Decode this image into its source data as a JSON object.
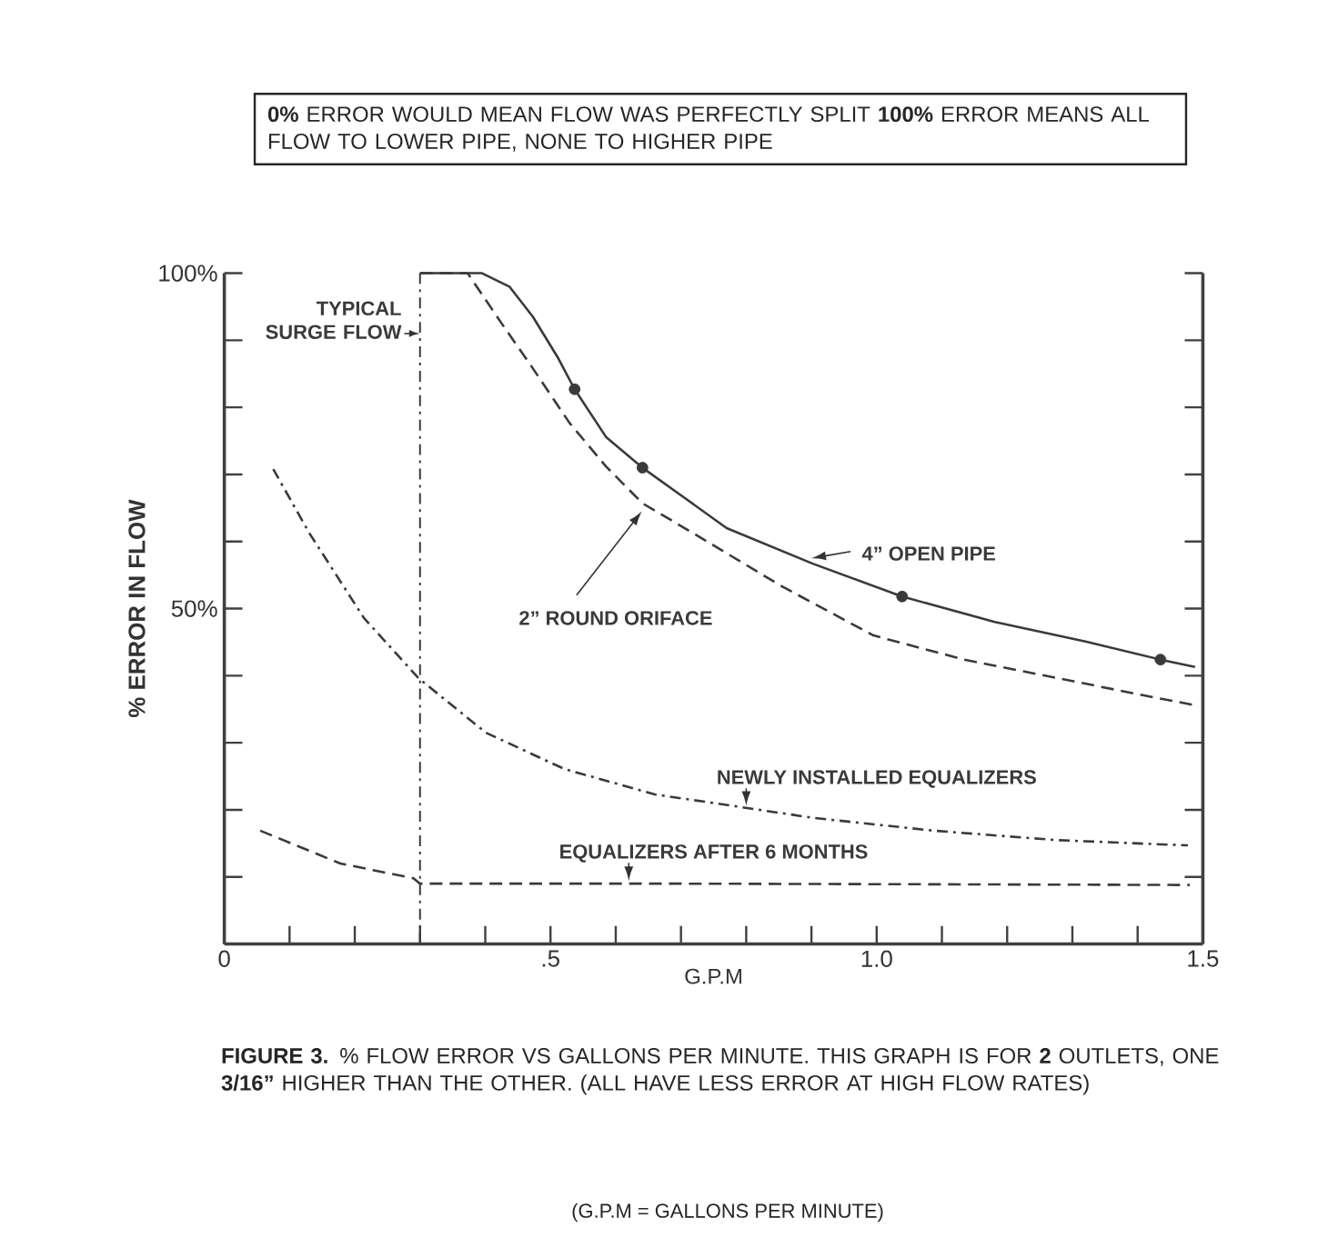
{
  "chart_data": {
    "type": "line",
    "xlabel": "G.P.M",
    "ylabel": "% ERROR IN FLOW",
    "xlim": [
      0,
      1.5
    ],
    "ylim": [
      0,
      100
    ],
    "xticks": [
      {
        "value": 0,
        "label": "0"
      },
      {
        "value": 0.1,
        "label": null
      },
      {
        "value": 0.2,
        "label": null
      },
      {
        "value": 0.3,
        "label": null
      },
      {
        "value": 0.4,
        "label": null
      },
      {
        "value": 0.5,
        "label": ".5"
      },
      {
        "value": 0.6,
        "label": null
      },
      {
        "value": 0.7,
        "label": null
      },
      {
        "value": 0.8,
        "label": null
      },
      {
        "value": 0.9,
        "label": null
      },
      {
        "value": 1.0,
        "label": "1.0"
      },
      {
        "value": 1.1,
        "label": null
      },
      {
        "value": 1.2,
        "label": null
      },
      {
        "value": 1.3,
        "label": null
      },
      {
        "value": 1.4,
        "label": null
      },
      {
        "value": 1.5,
        "label": "1.5"
      }
    ],
    "yticks": [
      {
        "value": 10,
        "label": null
      },
      {
        "value": 20,
        "label": null
      },
      {
        "value": 30,
        "label": null
      },
      {
        "value": 40,
        "label": null
      },
      {
        "value": 50,
        "label": "50%"
      },
      {
        "value": 60,
        "label": null
      },
      {
        "value": 70,
        "label": null
      },
      {
        "value": 80,
        "label": null
      },
      {
        "value": 90,
        "label": null
      },
      {
        "value": 100,
        "label": "100%"
      }
    ],
    "series": [
      {
        "name": "4” OPEN PIPE",
        "color": "#3a3a3a",
        "line_style": "solid",
        "x": [
          0.3,
          0.395,
          0.437,
          0.473,
          0.512,
          0.537,
          0.585,
          0.641,
          0.707,
          0.77,
          0.902,
          1.039,
          1.181,
          1.32,
          1.435,
          1.488
        ],
        "values": [
          100,
          100,
          98,
          93.5,
          87.3,
          82.7,
          75.6,
          71.0,
          66.4,
          62,
          56.7,
          51.8,
          48.0,
          45.1,
          42.4,
          41.3
        ]
      },
      {
        "name": "2” ROUND ORIFACE",
        "color": "#3a3a3a",
        "line_style": "dashed",
        "x": [
          0.3,
          0.373,
          0.428,
          0.473,
          0.529,
          0.585,
          0.641,
          0.716,
          0.855,
          0.995,
          1.134,
          1.274,
          1.413,
          1.488
        ],
        "values": [
          100,
          100,
          92.1,
          85.8,
          77.7,
          71.2,
          65.7,
          61.4,
          53.3,
          46.0,
          42.4,
          39.7,
          37.0,
          35.6
        ]
      },
      {
        "name": "NEWLY INSTALLED EQUALIZERS",
        "color": "#3a3a3a",
        "line_style": "dashdot",
        "x": [
          0.075,
          0.13,
          0.214,
          0.298,
          0.401,
          0.521,
          0.66,
          0.772,
          0.903,
          1.087,
          1.274,
          1.477
        ],
        "values": [
          70.8,
          61.3,
          48.6,
          39.6,
          31.5,
          26.1,
          22.3,
          20.7,
          18.8,
          16.9,
          15.5,
          14.7
        ]
      },
      {
        "name": "EQUALIZERS AFTER 6 MONTHS",
        "color": "#3a3a3a",
        "line_style": "dashed",
        "x": [
          0.055,
          0.178,
          0.29,
          0.3,
          0.7,
          1.1,
          1.48
        ],
        "values": [
          16.9,
          12.0,
          9.8,
          9.0,
          9.0,
          8.9,
          8.8
        ]
      },
      {
        "type": "scatter",
        "marker": "circle",
        "color": "#3a3a3a",
        "x": [
          0.537,
          0.641,
          1.039,
          1.435
        ],
        "values": [
          82.7,
          71.0,
          51.8,
          42.4
        ]
      }
    ],
    "ref_lines": [
      {
        "axis": "x",
        "value": 0.3,
        "label": "TYPICAL SURGE FLOW",
        "color": "#3a3a3a",
        "line_style": "dashdot"
      }
    ],
    "annotations": [
      "**0%** ERROR WOULD MEAN FLOW WAS PERFECTLY SPLIT **100%** ERROR MEANS ALL FLOW TO LOWER PIPE, NONE TO HIGHER PIPE",
      "**FIGURE 3.** % FLOW ERROR VS GALLONS PER MINUTE. THIS GRAPH IS FOR **2** OUTLETS, ONE **3/16”** HIGHER THAN THE OTHER. (ALL HAVE LESS ERROR AT HIGH FLOW RATES)",
      "(G.P.M = GALLONS PER MINUTE)"
    ]
  }
}
